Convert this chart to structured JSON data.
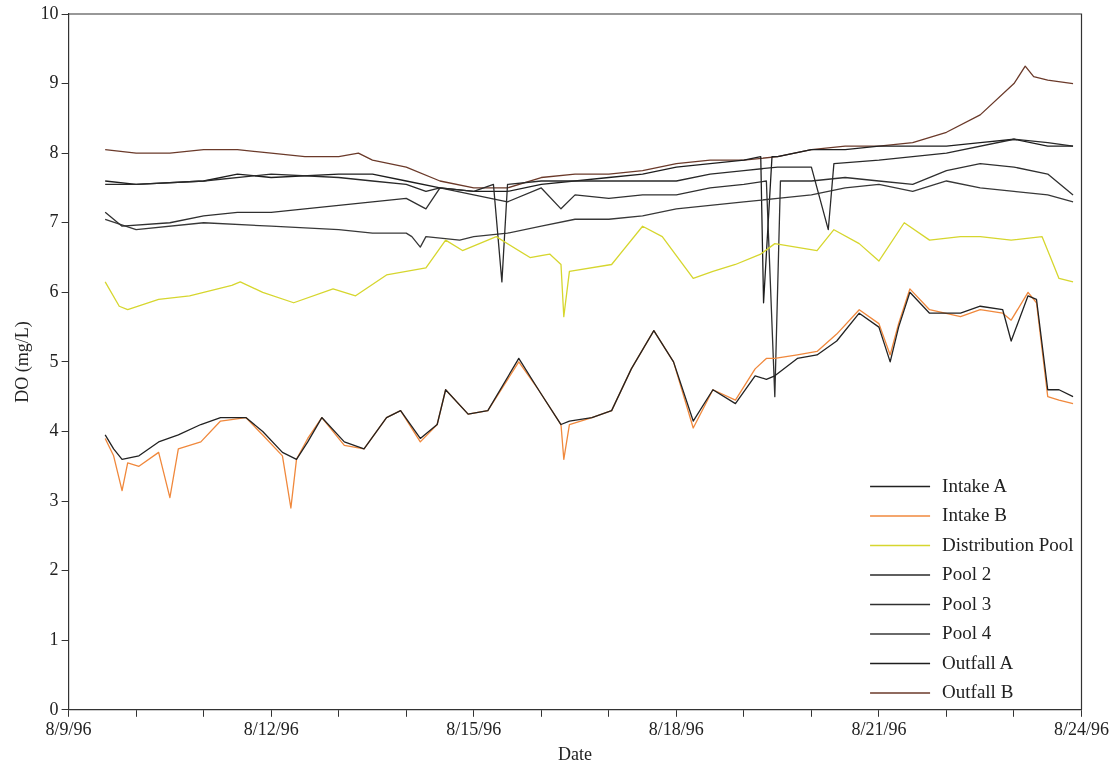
{
  "chart_data": {
    "type": "line",
    "xlabel": "Date",
    "ylabel": "DO (mg/L)",
    "xlim": [
      "1996-08-09",
      "1996-08-24"
    ],
    "ylim": [
      0,
      10
    ],
    "xticks": [
      {
        "value": "1996-08-09",
        "label": "8/9/96"
      },
      {
        "value": "1996-08-10",
        "label": null
      },
      {
        "value": "1996-08-11",
        "label": null
      },
      {
        "value": "1996-08-12",
        "label": "8/12/96"
      },
      {
        "value": "1996-08-13",
        "label": null
      },
      {
        "value": "1996-08-14",
        "label": null
      },
      {
        "value": "1996-08-15",
        "label": "8/15/96"
      },
      {
        "value": "1996-08-16",
        "label": null
      },
      {
        "value": "1996-08-17",
        "label": null
      },
      {
        "value": "1996-08-18",
        "label": "8/18/96"
      },
      {
        "value": "1996-08-19",
        "label": null
      },
      {
        "value": "1996-08-20",
        "label": null
      },
      {
        "value": "1996-08-21",
        "label": "8/21/96"
      },
      {
        "value": "1996-08-22",
        "label": null
      },
      {
        "value": "1996-08-23",
        "label": null
      },
      {
        "value": "1996-08-24",
        "label": "8/24/96"
      }
    ],
    "yticks": [
      0,
      1,
      2,
      3,
      4,
      5,
      6,
      7,
      8,
      9,
      10
    ],
    "grid": false,
    "legend": "bottom right",
    "marker": "none",
    "line_style": "solid",
    "series": [
      {
        "name": "Intake A",
        "color": "#222222",
        "x": [
          "1996-08-09T13:00",
          "1996-08-09T16:00",
          "1996-08-09T19:00",
          "1996-08-10T01:00",
          "1996-08-10T08:00",
          "1996-08-10T15:00",
          "1996-08-10T23:00",
          "1996-08-11T06:00",
          "1996-08-11T15:00",
          "1996-08-11T21:00",
          "1996-08-12T04:00",
          "1996-08-12T09:00",
          "1996-08-12T13:00",
          "1996-08-12T18:00",
          "1996-08-13T02:00",
          "1996-08-13T09:00",
          "1996-08-13T17:00",
          "1996-08-13T22:00",
          "1996-08-14T05:00",
          "1996-08-14T11:00",
          "1996-08-14T14:00",
          "1996-08-14T22:00",
          "1996-08-15T05:00",
          "1996-08-15T16:00",
          "1996-08-15T23:00",
          "1996-08-16T07:00",
          "1996-08-16T10:00",
          "1996-08-16T18:00",
          "1996-08-17T01:00",
          "1996-08-17T08:00",
          "1996-08-17T16:00",
          "1996-08-17T23:00",
          "1996-08-18T06:00",
          "1996-08-18T13:00",
          "1996-08-18T21:00",
          "1996-08-19T04:00",
          "1996-08-19T08:00",
          "1996-08-19T11:00",
          "1996-08-19T19:00",
          "1996-08-20T02:00",
          "1996-08-20T09:00",
          "1996-08-20T17:00",
          "1996-08-21T00:00",
          "1996-08-21T04:00",
          "1996-08-21T07:00",
          "1996-08-21T11:00",
          "1996-08-21T18:00",
          "1996-08-22T05:00",
          "1996-08-22T12:00",
          "1996-08-22T20:00",
          "1996-08-22T23:00",
          "1996-08-23T05:00",
          "1996-08-23T08:00",
          "1996-08-23T12:00",
          "1996-08-23T16:00",
          "1996-08-23T21:00"
        ],
        "values": [
          3.95,
          3.75,
          3.6,
          3.65,
          3.85,
          3.95,
          4.1,
          4.2,
          4.2,
          4.0,
          3.7,
          3.6,
          3.85,
          4.2,
          3.85,
          3.75,
          4.2,
          4.3,
          3.9,
          4.1,
          4.6,
          4.25,
          4.3,
          5.05,
          4.6,
          4.1,
          4.15,
          4.2,
          4.3,
          4.9,
          5.45,
          5.0,
          4.15,
          4.6,
          4.4,
          4.8,
          4.75,
          4.8,
          5.05,
          5.1,
          5.3,
          5.7,
          5.5,
          5.0,
          5.5,
          6.0,
          5.7,
          5.7,
          5.8,
          5.75,
          5.3,
          5.95,
          5.9,
          4.6,
          4.6,
          4.5
        ]
      },
      {
        "name": "Intake B",
        "color": "#f0883c",
        "x": [
          "1996-08-09T13:00",
          "1996-08-09T16:00",
          "1996-08-09T19:00",
          "1996-08-09T21:00",
          "1996-08-10T01:00",
          "1996-08-10T08:00",
          "1996-08-10T12:00",
          "1996-08-10T15:00",
          "1996-08-10T23:00",
          "1996-08-11T06:00",
          "1996-08-11T15:00",
          "1996-08-11T21:00",
          "1996-08-12T04:00",
          "1996-08-12T07:00",
          "1996-08-12T09:00",
          "1996-08-12T13:00",
          "1996-08-12T18:00",
          "1996-08-13T02:00",
          "1996-08-13T09:00",
          "1996-08-13T17:00",
          "1996-08-13T22:00",
          "1996-08-14T05:00",
          "1996-08-14T11:00",
          "1996-08-14T14:00",
          "1996-08-14T22:00",
          "1996-08-15T05:00",
          "1996-08-15T16:00",
          "1996-08-15T23:00",
          "1996-08-16T07:00",
          "1996-08-16T08:00",
          "1996-08-16T10:00",
          "1996-08-16T18:00",
          "1996-08-17T01:00",
          "1996-08-17T08:00",
          "1996-08-17T16:00",
          "1996-08-17T23:00",
          "1996-08-18T06:00",
          "1996-08-18T13:00",
          "1996-08-18T21:00",
          "1996-08-19T04:00",
          "1996-08-19T08:00",
          "1996-08-19T11:00",
          "1996-08-19T19:00",
          "1996-08-20T02:00",
          "1996-08-20T09:00",
          "1996-08-20T17:00",
          "1996-08-21T00:00",
          "1996-08-21T04:00",
          "1996-08-21T07:00",
          "1996-08-21T11:00",
          "1996-08-21T18:00",
          "1996-08-22T05:00",
          "1996-08-22T12:00",
          "1996-08-22T20:00",
          "1996-08-22T23:00",
          "1996-08-23T05:00",
          "1996-08-23T08:00",
          "1996-08-23T12:00",
          "1996-08-23T16:00",
          "1996-08-23T21:00"
        ],
        "values": [
          3.9,
          3.65,
          3.15,
          3.55,
          3.5,
          3.7,
          3.05,
          3.75,
          3.85,
          4.15,
          4.2,
          3.95,
          3.65,
          2.9,
          3.6,
          3.9,
          4.2,
          3.8,
          3.75,
          4.2,
          4.3,
          3.85,
          4.1,
          4.6,
          4.25,
          4.3,
          5.0,
          4.6,
          4.1,
          3.6,
          4.1,
          4.2,
          4.3,
          4.9,
          5.45,
          5.0,
          4.05,
          4.6,
          4.45,
          4.9,
          5.05,
          5.05,
          5.1,
          5.15,
          5.4,
          5.75,
          5.55,
          5.1,
          5.55,
          6.05,
          5.75,
          5.65,
          5.75,
          5.7,
          5.6,
          6.0,
          5.85,
          4.5,
          4.45,
          4.4
        ]
      },
      {
        "name": "Distribution Pool",
        "color": "#d6d62e",
        "x": [
          "1996-08-09T13:00",
          "1996-08-09T18:00",
          "1996-08-09T21:00",
          "1996-08-10T08:00",
          "1996-08-10T19:00",
          "1996-08-11T10:00",
          "1996-08-11T13:00",
          "1996-08-11T21:00",
          "1996-08-12T08:00",
          "1996-08-12T22:00",
          "1996-08-13T06:00",
          "1996-08-13T17:00",
          "1996-08-14T07:00",
          "1996-08-14T14:00",
          "1996-08-14T20:00",
          "1996-08-15T08:00",
          "1996-08-15T20:00",
          "1996-08-16T03:00",
          "1996-08-16T07:00",
          "1996-08-16T08:00",
          "1996-08-16T10:00",
          "1996-08-17T01:00",
          "1996-08-17T12:00",
          "1996-08-17T19:00",
          "1996-08-18T06:00",
          "1996-08-18T13:00",
          "1996-08-18T21:00",
          "1996-08-19T06:00",
          "1996-08-19T11:00",
          "1996-08-20T02:00",
          "1996-08-20T08:00",
          "1996-08-20T17:00",
          "1996-08-21T00:00",
          "1996-08-21T09:00",
          "1996-08-21T18:00",
          "1996-08-22T05:00",
          "1996-08-22T12:00",
          "1996-08-22T23:00",
          "1996-08-23T10:00",
          "1996-08-23T13:00",
          "1996-08-23T16:00",
          "1996-08-23T21:00"
        ],
        "values": [
          6.15,
          5.8,
          5.75,
          5.9,
          5.95,
          6.1,
          6.15,
          6.0,
          5.85,
          6.05,
          5.95,
          6.25,
          6.35,
          6.75,
          6.6,
          6.8,
          6.5,
          6.55,
          6.4,
          5.65,
          6.3,
          6.4,
          6.95,
          6.8,
          6.2,
          6.3,
          6.4,
          6.55,
          6.7,
          6.6,
          6.9,
          6.7,
          6.45,
          7.0,
          6.75,
          6.8,
          6.8,
          6.75,
          6.8,
          6.5,
          6.2,
          6.15
        ]
      },
      {
        "name": "Pool 2",
        "color": "#2a2a2a",
        "x": [
          "1996-08-09T13:00",
          "1996-08-10T00:00",
          "1996-08-11T00:00",
          "1996-08-12T00:00",
          "1996-08-13T00:00",
          "1996-08-13T12:00",
          "1996-08-14T00:00",
          "1996-08-14T07:00",
          "1996-08-14T12:00",
          "1996-08-15T00:00",
          "1996-08-15T07:00",
          "1996-08-15T10:00",
          "1996-08-15T12:00",
          "1996-08-16T00:00",
          "1996-08-17T00:00",
          "1996-08-18T00:00",
          "1996-08-18T12:00",
          "1996-08-19T00:00",
          "1996-08-19T12:00",
          "1996-08-20T00:00",
          "1996-08-20T06:00",
          "1996-08-20T08:00",
          "1996-08-21T00:00",
          "1996-08-22T00:00",
          "1996-08-23T00:00",
          "1996-08-23T12:00",
          "1996-08-23T21:00"
        ],
        "values": [
          7.55,
          7.55,
          7.6,
          7.7,
          7.65,
          7.6,
          7.55,
          7.45,
          7.5,
          7.45,
          7.55,
          6.15,
          7.55,
          7.6,
          7.6,
          7.6,
          7.7,
          7.75,
          7.8,
          7.8,
          6.9,
          7.85,
          7.9,
          8.0,
          8.2,
          8.15,
          8.1
        ]
      },
      {
        "name": "Pool 3",
        "color": "#303030",
        "x": [
          "1996-08-09T13:00",
          "1996-08-09T19:00",
          "1996-08-10T12:00",
          "1996-08-11T00:00",
          "1996-08-11T12:00",
          "1996-08-12T00:00",
          "1996-08-12T12:00",
          "1996-08-13T00:00",
          "1996-08-13T12:00",
          "1996-08-14T00:00",
          "1996-08-14T07:00",
          "1996-08-14T12:00",
          "1996-08-15T00:00",
          "1996-08-15T12:00",
          "1996-08-16T00:00",
          "1996-08-16T07:00",
          "1996-08-16T12:00",
          "1996-08-17T00:00",
          "1996-08-17T12:00",
          "1996-08-18T00:00",
          "1996-08-18T12:00",
          "1996-08-19T00:00",
          "1996-08-19T08:00",
          "1996-08-19T11:00",
          "1996-08-19T13:00",
          "1996-08-20T00:00",
          "1996-08-20T12:00",
          "1996-08-21T00:00",
          "1996-08-21T12:00",
          "1996-08-22T00:00",
          "1996-08-22T12:00",
          "1996-08-23T00:00",
          "1996-08-23T12:00",
          "1996-08-23T21:00"
        ],
        "values": [
          7.15,
          6.95,
          7.0,
          7.1,
          7.15,
          7.15,
          7.2,
          7.25,
          7.3,
          7.35,
          7.2,
          7.5,
          7.4,
          7.3,
          7.5,
          7.2,
          7.4,
          7.35,
          7.4,
          7.4,
          7.5,
          7.55,
          7.6,
          4.5,
          7.6,
          7.6,
          7.65,
          7.6,
          7.55,
          7.75,
          7.85,
          7.8,
          7.7,
          7.4
        ]
      },
      {
        "name": "Pool 4",
        "color": "#383838",
        "x": [
          "1996-08-09T13:00",
          "1996-08-10T00:00",
          "1996-08-11T00:00",
          "1996-08-12T00:00",
          "1996-08-13T00:00",
          "1996-08-13T12:00",
          "1996-08-14T00:00",
          "1996-08-14T02:00",
          "1996-08-14T05:00",
          "1996-08-14T07:00",
          "1996-08-14T19:00",
          "1996-08-15T00:00",
          "1996-08-15T12:00",
          "1996-08-16T00:00",
          "1996-08-16T12:00",
          "1996-08-17T00:00",
          "1996-08-17T12:00",
          "1996-08-18T00:00",
          "1996-08-18T12:00",
          "1996-08-19T00:00",
          "1996-08-19T12:00",
          "1996-08-20T00:00",
          "1996-08-20T12:00",
          "1996-08-21T00:00",
          "1996-08-21T12:00",
          "1996-08-22T00:00",
          "1996-08-22T12:00",
          "1996-08-23T00:00",
          "1996-08-23T12:00",
          "1996-08-23T21:00"
        ],
        "values": [
          7.05,
          6.9,
          7.0,
          6.95,
          6.9,
          6.85,
          6.85,
          6.8,
          6.65,
          6.8,
          6.75,
          6.8,
          6.85,
          6.95,
          7.05,
          7.05,
          7.1,
          7.2,
          7.25,
          7.3,
          7.35,
          7.4,
          7.5,
          7.55,
          7.45,
          7.6,
          7.5,
          7.45,
          7.4,
          7.3
        ]
      },
      {
        "name": "Outfall A",
        "color": "#1e1e1e",
        "x": [
          "1996-08-09T13:00",
          "1996-08-10T00:00",
          "1996-08-11T00:00",
          "1996-08-11T12:00",
          "1996-08-12T00:00",
          "1996-08-13T00:00",
          "1996-08-13T12:00",
          "1996-08-14T00:00",
          "1996-08-14T12:00",
          "1996-08-15T00:00",
          "1996-08-15T12:00",
          "1996-08-16T00:00",
          "1996-08-17T00:00",
          "1996-08-17T12:00",
          "1996-08-18T00:00",
          "1996-08-19T00:00",
          "1996-08-19T06:00",
          "1996-08-19T07:00",
          "1996-08-19T10:00",
          "1996-08-19T12:00",
          "1996-08-20T00:00",
          "1996-08-20T12:00",
          "1996-08-21T00:00",
          "1996-08-21T12:00",
          "1996-08-22T00:00",
          "1996-08-22T12:00",
          "1996-08-23T00:00",
          "1996-08-23T12:00",
          "1996-08-23T21:00"
        ],
        "values": [
          7.6,
          7.55,
          7.6,
          7.7,
          7.65,
          7.7,
          7.7,
          7.6,
          7.5,
          7.45,
          7.45,
          7.55,
          7.65,
          7.7,
          7.8,
          7.9,
          7.95,
          5.85,
          7.95,
          7.95,
          8.05,
          8.05,
          8.1,
          8.1,
          8.1,
          8.15,
          8.2,
          8.1,
          8.1
        ]
      },
      {
        "name": "Outfall B",
        "color": "#6b3a2a",
        "x": [
          "1996-08-09T13:00",
          "1996-08-10T00:00",
          "1996-08-10T12:00",
          "1996-08-11T00:00",
          "1996-08-11T12:00",
          "1996-08-12T00:00",
          "1996-08-12T12:00",
          "1996-08-13T00:00",
          "1996-08-13T07:00",
          "1996-08-13T12:00",
          "1996-08-14T00:00",
          "1996-08-14T12:00",
          "1996-08-15T00:00",
          "1996-08-15T12:00",
          "1996-08-16T00:00",
          "1996-08-16T12:00",
          "1996-08-17T00:00",
          "1996-08-17T12:00",
          "1996-08-18T00:00",
          "1996-08-18T12:00",
          "1996-08-19T00:00",
          "1996-08-19T12:00",
          "1996-08-20T00:00",
          "1996-08-20T12:00",
          "1996-08-21T00:00",
          "1996-08-21T12:00",
          "1996-08-22T00:00",
          "1996-08-22T12:00",
          "1996-08-23T00:00",
          "1996-08-23T04:00",
          "1996-08-23T07:00",
          "1996-08-23T12:00",
          "1996-08-23T21:00"
        ],
        "values": [
          8.05,
          8.0,
          8.0,
          8.05,
          8.05,
          8.0,
          7.95,
          7.95,
          8.0,
          7.9,
          7.8,
          7.6,
          7.5,
          7.5,
          7.65,
          7.7,
          7.7,
          7.75,
          7.85,
          7.9,
          7.9,
          7.95,
          8.05,
          8.1,
          8.1,
          8.15,
          8.3,
          8.55,
          9.0,
          9.25,
          9.1,
          9.05,
          9.0
        ]
      }
    ]
  }
}
